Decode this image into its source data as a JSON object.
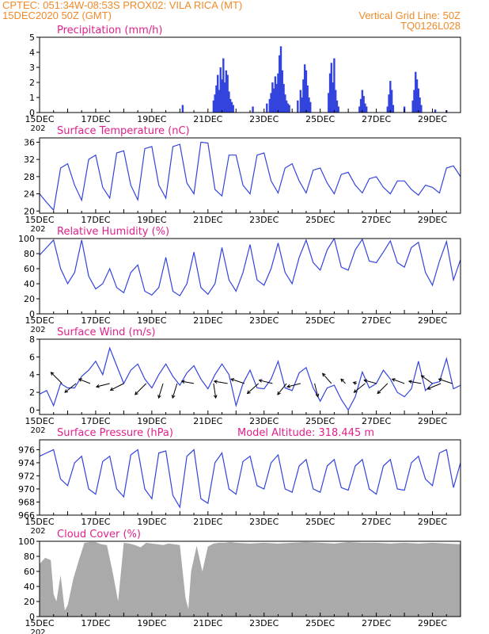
{
  "header": {
    "line1": "CPTEC:   051:34W-08:53S   PROX02: VILA RICA (MT)",
    "line2": "15DEC2020  50Z (GMT)",
    "grid_note": "Vertical Grid Line: 50Z",
    "run_id": "TQ0126L028"
  },
  "colors": {
    "line": "#3344dd",
    "title": "#e0208c",
    "header": "#f08a2a",
    "cloud": "#aaaaaa",
    "axis": "#000000"
  },
  "x_axis": {
    "ticks": [
      "15DEC",
      "17DEC",
      "19DEC",
      "21DEC",
      "23DEC",
      "25DEC",
      "27DEC",
      "29DEC"
    ],
    "tick_days": [
      0,
      2,
      4,
      6,
      8,
      10,
      12,
      14
    ],
    "range_days": [
      0,
      15
    ],
    "clipped_label": "202"
  },
  "chart_data": [
    {
      "type": "bar",
      "title": "Precipitation (mm/h)",
      "ylim": [
        0,
        5
      ],
      "yticks": [
        0,
        1,
        2,
        3,
        4,
        5
      ],
      "x_days": [
        5.1,
        6.2,
        6.25,
        6.3,
        6.35,
        6.4,
        6.45,
        6.5,
        6.55,
        6.6,
        6.65,
        6.7,
        6.75,
        6.8,
        6.85,
        6.9,
        7.6,
        8.1,
        8.2,
        8.25,
        8.3,
        8.35,
        8.4,
        8.45,
        8.5,
        8.55,
        8.6,
        8.65,
        8.7,
        8.75,
        8.8,
        8.85,
        8.9,
        9.2,
        9.3,
        9.35,
        9.4,
        9.45,
        9.5,
        9.55,
        9.6,
        9.65,
        10.3,
        10.35,
        10.4,
        10.45,
        10.5,
        10.55,
        10.6,
        10.65,
        11.4,
        11.45,
        11.5,
        11.55,
        11.6,
        11.65,
        12.4,
        12.45,
        12.5,
        12.55,
        12.6,
        13.0,
        13.3,
        13.35,
        13.4,
        13.45,
        13.5,
        13.55,
        13.6,
        14.1,
        14.5
      ],
      "values": [
        0.5,
        0.8,
        1.2,
        1.8,
        2.5,
        1.5,
        3.0,
        2.2,
        3.6,
        2.0,
        2.8,
        2.5,
        1.4,
        0.9,
        0.7,
        0.5,
        0.4,
        0.6,
        0.9,
        1.3,
        2.0,
        1.6,
        2.4,
        1.9,
        2.6,
        3.8,
        4.4,
        2.8,
        1.9,
        1.2,
        0.8,
        0.6,
        0.5,
        0.8,
        1.5,
        1.0,
        2.2,
        3.2,
        2.8,
        1.8,
        1.0,
        0.7,
        1.3,
        2.6,
        3.3,
        2.0,
        3.6,
        1.5,
        0.8,
        0.4,
        0.4,
        0.9,
        1.5,
        1.1,
        0.6,
        0.4,
        0.4,
        1.2,
        2.1,
        1.5,
        0.5,
        0.4,
        0.8,
        1.5,
        2.7,
        2.2,
        1.6,
        1.0,
        0.5,
        0.2,
        0.15
      ]
    },
    {
      "type": "line",
      "title": "Surface Temperature (nC)",
      "ylim": [
        19.5,
        37
      ],
      "yticks": [
        20,
        24,
        28,
        32,
        36
      ],
      "x_days": [
        0,
        0.25,
        0.5,
        0.75,
        1,
        1.25,
        1.5,
        1.75,
        2,
        2.25,
        2.5,
        2.75,
        3,
        3.25,
        3.5,
        3.75,
        4,
        4.25,
        4.5,
        4.75,
        5,
        5.25,
        5.5,
        5.75,
        6,
        6.25,
        6.5,
        6.75,
        7,
        7.25,
        7.5,
        7.75,
        8,
        8.25,
        8.5,
        8.75,
        9,
        9.25,
        9.5,
        9.75,
        10,
        10.25,
        10.5,
        10.75,
        11,
        11.25,
        11.5,
        11.75,
        12,
        12.25,
        12.5,
        12.75,
        13,
        13.25,
        13.5,
        13.75,
        14,
        14.25,
        14.5,
        14.75,
        15
      ],
      "values": [
        24,
        22,
        20.2,
        30,
        31,
        26,
        22.5,
        32,
        33,
        25.5,
        23,
        33.5,
        34,
        26,
        22.6,
        34.5,
        35,
        26,
        23,
        35,
        35.5,
        26.5,
        24,
        36,
        35.8,
        25,
        23.5,
        33,
        33,
        26,
        24,
        33,
        33.5,
        27,
        24.2,
        30,
        31,
        27,
        24.2,
        29.5,
        30,
        26.5,
        24,
        28.5,
        29,
        26,
        24.2,
        27.5,
        28,
        25.5,
        24,
        27,
        27,
        25,
        23.7,
        26,
        25.5,
        24.2,
        30,
        30.5,
        28
      ]
    },
    {
      "type": "line",
      "title": "Relative Humidity (%)",
      "ylim": [
        0,
        100
      ],
      "yticks": [
        0,
        20,
        40,
        60,
        80,
        100
      ],
      "x_days": [
        0,
        0.25,
        0.5,
        0.75,
        1,
        1.25,
        1.5,
        1.75,
        2,
        2.25,
        2.5,
        2.75,
        3,
        3.25,
        3.5,
        3.75,
        4,
        4.25,
        4.5,
        4.75,
        5,
        5.25,
        5.5,
        5.75,
        6,
        6.25,
        6.5,
        6.75,
        7,
        7.25,
        7.5,
        7.75,
        8,
        8.25,
        8.5,
        8.75,
        9,
        9.25,
        9.5,
        9.75,
        10,
        10.25,
        10.5,
        10.75,
        11,
        11.25,
        11.5,
        11.75,
        12,
        12.25,
        12.5,
        12.75,
        13,
        13.25,
        13.5,
        13.75,
        14,
        14.25,
        14.5,
        14.75,
        15
      ],
      "values": [
        78,
        88,
        98,
        60,
        40,
        55,
        98,
        50,
        33,
        40,
        60,
        35,
        28,
        55,
        65,
        30,
        25,
        35,
        75,
        30,
        24,
        40,
        82,
        35,
        26,
        40,
        88,
        45,
        30,
        55,
        92,
        45,
        38,
        60,
        94,
        55,
        40,
        75,
        98,
        68,
        58,
        85,
        100,
        62,
        58,
        85,
        99,
        70,
        68,
        82,
        97,
        68,
        62,
        88,
        95,
        55,
        38,
        70,
        96,
        45,
        72
      ]
    },
    {
      "type": "line",
      "title": "Surface Wind (m/s)",
      "ylim": [
        -0.5,
        8
      ],
      "yticks": [
        0,
        2,
        4,
        6,
        8
      ],
      "x_days": [
        0,
        0.25,
        0.5,
        0.75,
        1,
        1.25,
        1.5,
        1.75,
        2,
        2.25,
        2.5,
        2.75,
        3,
        3.25,
        3.5,
        3.75,
        4,
        4.25,
        4.5,
        4.75,
        5,
        5.25,
        5.5,
        5.75,
        6,
        6.25,
        6.5,
        6.75,
        7,
        7.25,
        7.5,
        7.75,
        8,
        8.25,
        8.5,
        8.75,
        9,
        9.25,
        9.5,
        9.75,
        10,
        10.25,
        10.5,
        10.75,
        11,
        11.25,
        11.5,
        11.75,
        12,
        12.25,
        12.5,
        12.75,
        13,
        13.25,
        13.5,
        13.75,
        14,
        14.25,
        14.5,
        14.75,
        15
      ],
      "values": [
        1.8,
        2.2,
        0.5,
        3,
        2.5,
        2.5,
        3.8,
        4.5,
        5.5,
        4,
        7,
        5,
        3,
        4.5,
        5.2,
        3.5,
        2.5,
        4,
        5.2,
        3.8,
        2.8,
        4.2,
        5.0,
        3.5,
        2.4,
        4,
        5.2,
        4,
        0.5,
        3,
        4.5,
        2.5,
        2.4,
        3.5,
        5.5,
        2.5,
        2.2,
        4.2,
        4.8,
        2.5,
        1.0,
        2.5,
        2.8,
        1.2,
        0,
        1.5,
        4.3,
        2.5,
        3.0,
        4.5,
        3.5,
        2.0,
        1.5,
        2.4,
        5.5,
        2.2,
        3.0,
        3.2,
        5.8,
        2.4,
        2.8
      ],
      "arrows": [
        {
          "day": 0.8,
          "u": -1,
          "v": 1
        },
        {
          "day": 1.3,
          "u": -1,
          "v": -0.8
        },
        {
          "day": 1.8,
          "u": -1,
          "v": 0.4
        },
        {
          "day": 2.5,
          "u": -1.2,
          "v": -0.3
        },
        {
          "day": 3.0,
          "u": -1.2,
          "v": -0.6
        },
        {
          "day": 3.8,
          "u": -1,
          "v": -1
        },
        {
          "day": 4.4,
          "u": -0.4,
          "v": -1.3
        },
        {
          "day": 4.9,
          "u": -0.4,
          "v": -1.3
        },
        {
          "day": 5.5,
          "u": -1.1,
          "v": 0.2
        },
        {
          "day": 6.2,
          "u": 0.2,
          "v": -1.3
        },
        {
          "day": 6.7,
          "u": -1.2,
          "v": 0.2
        },
        {
          "day": 7.3,
          "u": -1.2,
          "v": 0.4
        },
        {
          "day": 7.8,
          "u": -1,
          "v": -0.9
        },
        {
          "day": 8.3,
          "u": -1.2,
          "v": 0.3
        },
        {
          "day": 8.8,
          "u": -0.8,
          "v": -1
        },
        {
          "day": 9.3,
          "u": -1.2,
          "v": -0.3
        },
        {
          "day": 9.8,
          "u": 0.3,
          "v": -1.2
        },
        {
          "day": 10.4,
          "u": -0.8,
          "v": 0.9
        },
        {
          "day": 10.9,
          "u": -0.4,
          "v": 0.4
        },
        {
          "day": 11.3,
          "u": -0.3,
          "v": 0.1
        },
        {
          "day": 11.6,
          "u": -1,
          "v": -0.8
        },
        {
          "day": 12.0,
          "u": -1.1,
          "v": 0.3
        },
        {
          "day": 12.4,
          "u": -0.9,
          "v": -0.9
        },
        {
          "day": 13.0,
          "u": -1.1,
          "v": 0.4
        },
        {
          "day": 13.6,
          "u": -1.1,
          "v": 0.2
        },
        {
          "day": 14.0,
          "u": -1.0,
          "v": 0.7
        },
        {
          "day": 14.3,
          "u": -1.2,
          "v": -0.5
        },
        {
          "day": 14.7,
          "u": -1.2,
          "v": 0.4
        }
      ]
    },
    {
      "type": "line",
      "title": "Surface Pressure (hPa)",
      "subtitle": "Model Altitude: 318.445  m",
      "ylim": [
        966,
        977.5
      ],
      "yticks": [
        966,
        968,
        970,
        972,
        974,
        976
      ],
      "x_days": [
        0,
        0.25,
        0.5,
        0.75,
        1,
        1.25,
        1.5,
        1.75,
        2,
        2.25,
        2.5,
        2.75,
        3,
        3.25,
        3.5,
        3.75,
        4,
        4.25,
        4.5,
        4.75,
        5,
        5.25,
        5.5,
        5.75,
        6,
        6.25,
        6.5,
        6.75,
        7,
        7.25,
        7.5,
        7.75,
        8,
        8.25,
        8.5,
        8.75,
        9,
        9.25,
        9.5,
        9.75,
        10,
        10.25,
        10.5,
        10.75,
        11,
        11.25,
        11.5,
        11.75,
        12,
        12.25,
        12.5,
        12.75,
        13,
        13.25,
        13.5,
        13.75,
        14,
        14.25,
        14.5,
        14.75,
        15
      ],
      "values": [
        975,
        975.5,
        976,
        971.5,
        970.5,
        974,
        975,
        970,
        969.2,
        974.2,
        975,
        970,
        968.8,
        975.2,
        976,
        970,
        968.5,
        975.5,
        975.8,
        969,
        967.2,
        975,
        976,
        968.5,
        967.8,
        974,
        975.5,
        970,
        969.2,
        974.2,
        975,
        970.5,
        970,
        974,
        975.2,
        970,
        969.5,
        973.5,
        974.5,
        970,
        969.5,
        973.5,
        974.5,
        970.2,
        969.8,
        973.5,
        974.5,
        970,
        969.2,
        973.5,
        974.5,
        970,
        969.8,
        974,
        975,
        971.5,
        970.5,
        975.5,
        976,
        970.2,
        974
      ]
    },
    {
      "type": "area",
      "title": "Cloud Cover (%)",
      "ylim": [
        0,
        100
      ],
      "yticks": [
        0,
        20,
        40,
        60,
        80,
        100
      ],
      "x_days": [
        0,
        0.2,
        0.4,
        0.5,
        0.6,
        0.75,
        0.9,
        1.0,
        1.2,
        1.4,
        1.6,
        1.8,
        2.0,
        2.2,
        2.4,
        2.6,
        2.8,
        3.0,
        3.2,
        3.4,
        3.6,
        3.8,
        4.0,
        4.2,
        4.4,
        4.6,
        4.8,
        5.0,
        5.2,
        5.3,
        5.4,
        5.6,
        5.8,
        6.0,
        6.2,
        6.4,
        6.6,
        6.8,
        7.0,
        7.5,
        8.0,
        8.5,
        9.0,
        9.5,
        10.0,
        10.5,
        11.0,
        11.5,
        12.0,
        12.5,
        13.0,
        13.5,
        14.0,
        14.5,
        15.0
      ],
      "values": [
        70,
        78,
        75,
        30,
        20,
        55,
        8,
        15,
        50,
        75,
        98,
        99,
        99,
        96,
        95,
        60,
        20,
        98,
        97,
        95,
        92,
        98,
        97,
        96,
        95,
        97,
        96,
        95,
        25,
        10,
        60,
        94,
        60,
        93,
        97,
        98,
        98,
        99,
        98,
        97,
        98,
        97,
        98,
        99,
        98,
        97,
        99,
        98,
        98,
        97,
        98,
        97,
        98,
        97,
        96
      ]
    }
  ]
}
